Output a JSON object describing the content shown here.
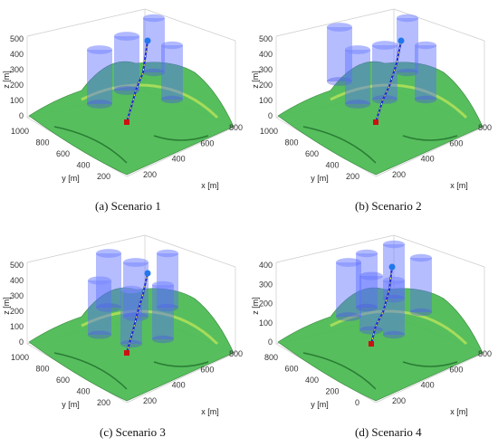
{
  "figure": {
    "panels": [
      {
        "caption": "(a) Scenario 1",
        "z_ticks": [
          "0",
          "100",
          "200",
          "300",
          "400",
          "500"
        ],
        "y_ticks": [
          "1000",
          "800",
          "600",
          "400",
          "200"
        ],
        "x_ticks": [
          "200",
          "400",
          "600",
          "800"
        ],
        "x_label": "x [m]",
        "y_label": "y [m]",
        "z_label": "z [m]",
        "cylinders": 4,
        "path_color": "#1a2bd6",
        "start_color": "#cc1111",
        "goal_color": "#2277ee"
      },
      {
        "caption": "(b) Scenario 2",
        "z_ticks": [
          "0",
          "100",
          "200",
          "300",
          "400",
          "500"
        ],
        "y_ticks": [
          "1000",
          "800",
          "600",
          "400",
          "200"
        ],
        "x_ticks": [
          "200",
          "400",
          "600",
          "800"
        ],
        "x_label": "x [m]",
        "y_label": "y [m]",
        "z_label": "z [m]",
        "cylinders": 5,
        "path_color": "#1a2bd6",
        "start_color": "#cc1111",
        "goal_color": "#2277ee"
      },
      {
        "caption": "(c) Scenario 3",
        "z_ticks": [
          "0",
          "100",
          "200",
          "300",
          "400",
          "500"
        ],
        "y_ticks": [
          "1000",
          "800",
          "600",
          "400",
          "200"
        ],
        "x_ticks": [
          "200",
          "400",
          "600",
          "800"
        ],
        "x_label": "x [m]",
        "y_label": "y [m]",
        "z_label": "z [m]",
        "cylinders": 6,
        "path_color": "#1a2bd6",
        "start_color": "#cc1111",
        "goal_color": "#2277ee"
      },
      {
        "caption": "(d) Scenario 4",
        "z_ticks": [
          "0",
          "100",
          "200",
          "300",
          "400"
        ],
        "y_ticks": [
          "800",
          "600",
          "400",
          "200",
          "0"
        ],
        "x_ticks": [
          "200",
          "400",
          "600",
          "800"
        ],
        "x_label": "x [m]",
        "y_label": "y [m]",
        "z_label": "z [m]",
        "cylinders": 6,
        "path_color": "#1a2bd6",
        "start_color": "#cc1111",
        "goal_color": "#2277ee"
      }
    ]
  }
}
